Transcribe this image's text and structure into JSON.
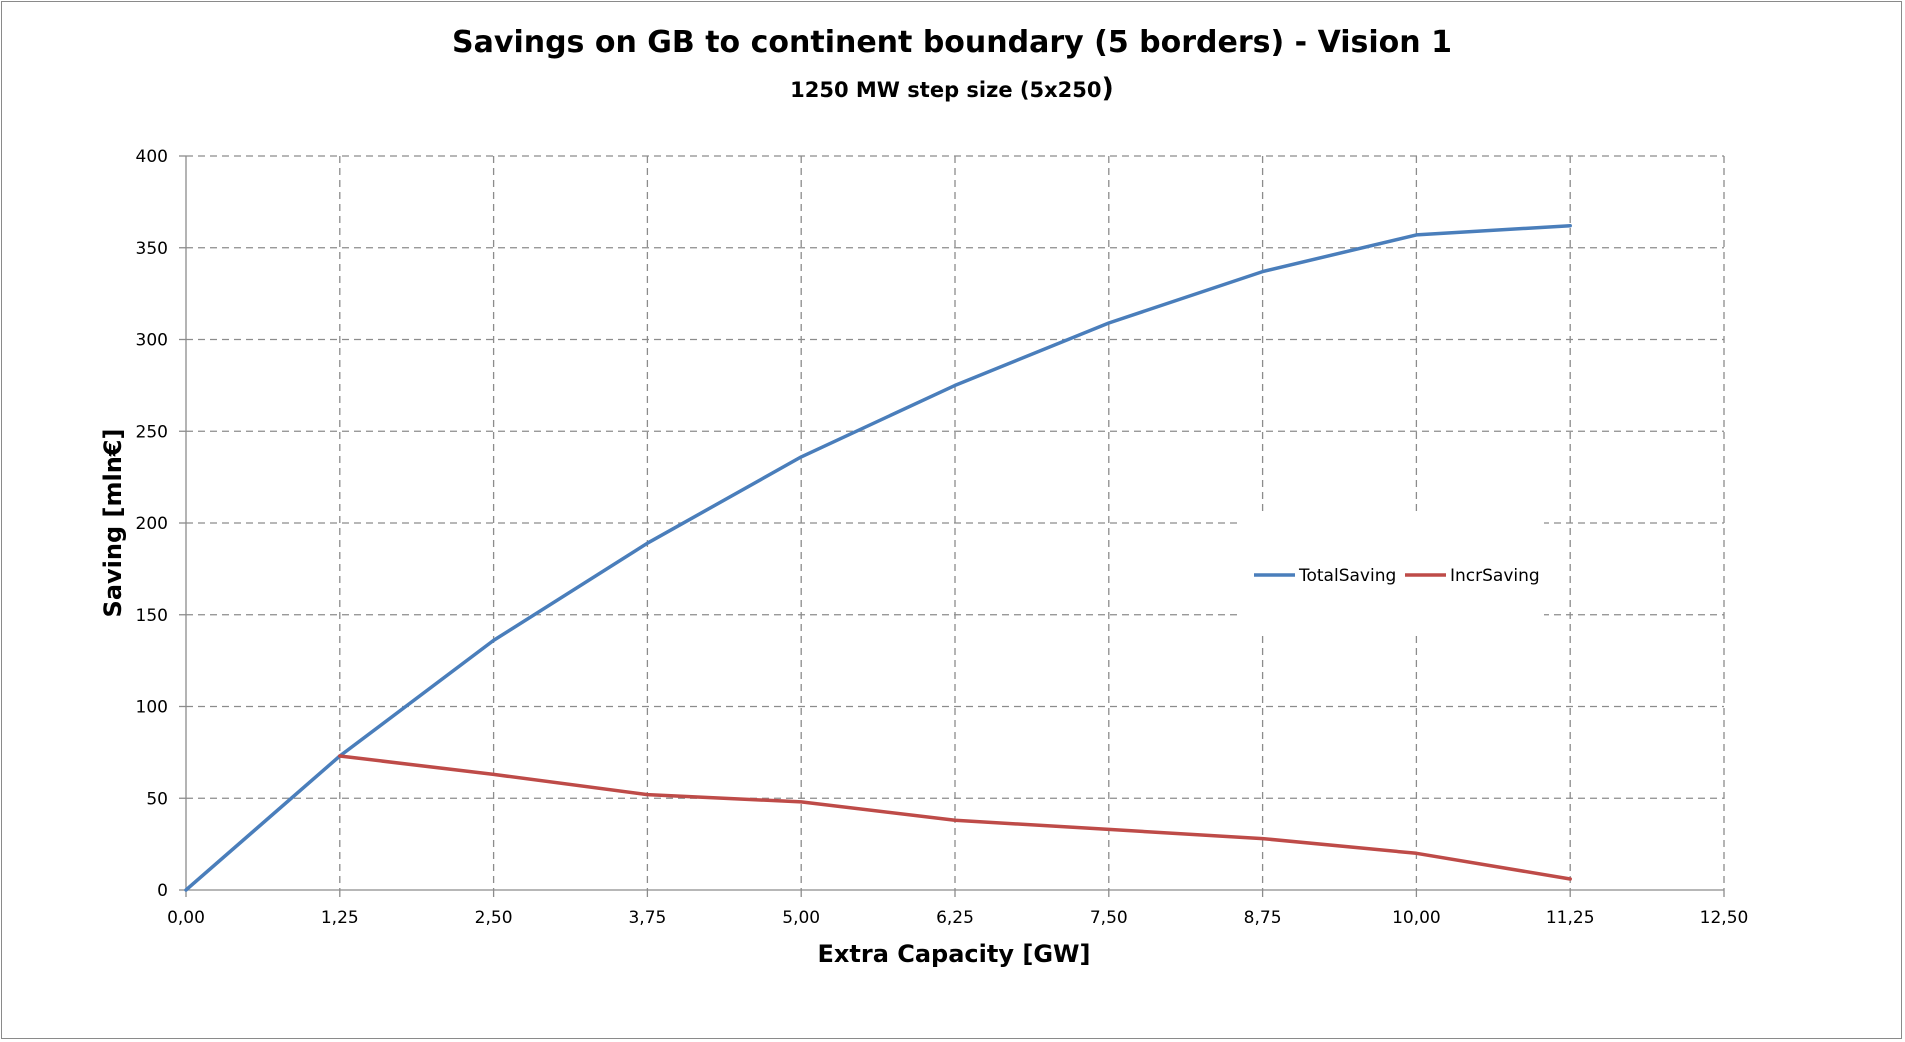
{
  "chart_data": {
    "type": "line",
    "title": "Savings on GB to continent boundary  (5 borders) - Vision 1",
    "subtitle_main": "1250 MW step size  (5x250",
    "subtitle_paren": ")",
    "xlabel": "Extra Capacity [GW]",
    "ylabel": "Saving [mln€]",
    "xlim": [
      0,
      12.5
    ],
    "ylim": [
      0,
      400
    ],
    "x_ticks": [
      0,
      1.25,
      2.5,
      3.75,
      5,
      6.25,
      7.5,
      8.75,
      10,
      11.25,
      12.5
    ],
    "x_tick_labels": [
      "0,00",
      "1,25",
      "2,50",
      "3,75",
      "5,00",
      "6,25",
      "7,50",
      "8,75",
      "10,00",
      "11,25",
      "12,50"
    ],
    "y_ticks": [
      0,
      50,
      100,
      150,
      200,
      250,
      300,
      350,
      400
    ],
    "y_tick_labels": [
      "0",
      "50",
      "100",
      "150",
      "200",
      "250",
      "300",
      "350",
      "400"
    ],
    "grid": true,
    "legend_position": "right-middle",
    "series": [
      {
        "name": "TotalSaving",
        "color": "#4a7ebb",
        "x": [
          0,
          1.25,
          2.5,
          3.75,
          5,
          6.25,
          7.5,
          8.75,
          10,
          11.25
        ],
        "values": [
          0,
          73,
          136,
          189,
          236,
          275,
          309,
          337,
          357,
          362
        ]
      },
      {
        "name": "IncrSaving",
        "color": "#be4b48",
        "x": [
          1.25,
          2.5,
          3.75,
          5,
          6.25,
          7.5,
          8.75,
          10,
          11.25
        ],
        "values": [
          73,
          63,
          52,
          48,
          38,
          33,
          28,
          20,
          6
        ]
      }
    ]
  }
}
